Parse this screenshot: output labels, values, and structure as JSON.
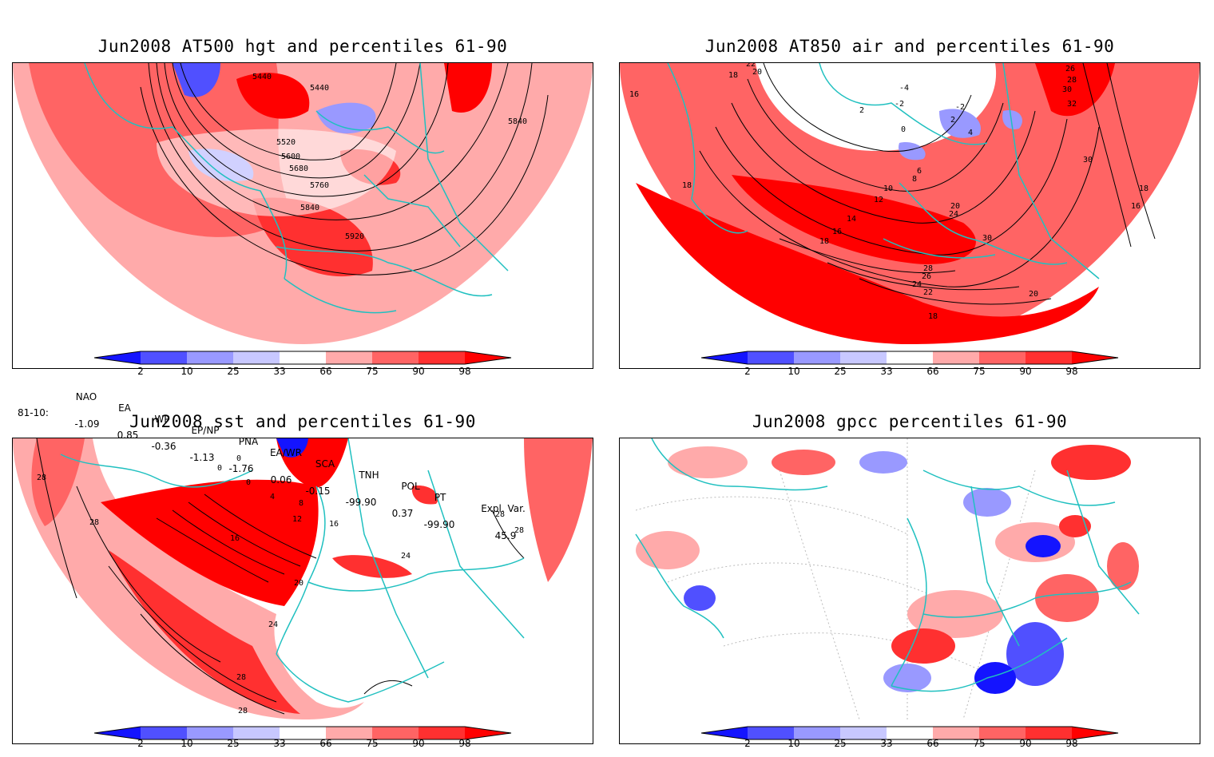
{
  "panels": [
    {
      "title": "Jun2008 AT500 hgt and percentiles 61-90",
      "contour_labels": [
        "5440",
        "5440",
        "5840",
        "5520",
        "5600",
        "5680",
        "5760",
        "5840",
        "5920"
      ]
    },
    {
      "title": "Jun2008 AT850 air and percentiles 61-90",
      "contour_labels": [
        "22",
        "20",
        "18",
        "16",
        "26",
        "28",
        "30",
        "32",
        "-4",
        "-2",
        "-2",
        "2",
        "2",
        "0",
        "4",
        "6",
        "8",
        "10",
        "12",
        "14",
        "16",
        "18",
        "18",
        "20",
        "24",
        "30",
        "30",
        "28",
        "26",
        "24",
        "22",
        "20",
        "18",
        "16",
        "18"
      ]
    },
    {
      "title": "Jun2008 sst and percentiles 61-90",
      "contour_labels": [
        "28",
        "28",
        "0",
        "0",
        "0",
        "4",
        "8",
        "12",
        "16",
        "16",
        "20",
        "24",
        "24",
        "28",
        "28",
        "28",
        "28"
      ]
    },
    {
      "title": "Jun2008 gpcc percentiles 61-90",
      "contour_labels": []
    }
  ],
  "colorbar": {
    "labels": [
      "2",
      "10",
      "25",
      "33",
      "66",
      "75",
      "90",
      "98"
    ],
    "colors": [
      "#1414ff",
      "#5050ff",
      "#9999ff",
      "#c8c8ff",
      "#ffffff",
      "#ffaaaa",
      "#ff6464",
      "#ff3030",
      "#ff0000"
    ]
  },
  "teleconnections": {
    "period": "81-10:",
    "headers": [
      "NAO",
      "EA",
      "WP",
      "EP/NP",
      "PNA",
      "EA/WR",
      "SCA",
      "TNH",
      "POL",
      "PT",
      "Expl. Var."
    ],
    "values": [
      "-1.09",
      "0.85",
      "-0.36",
      "-1.13",
      "-1.76",
      "0.06",
      "-0.15",
      "-99.90",
      "0.37",
      "-99.90",
      "45.9"
    ]
  },
  "colors": {
    "coast": "#20c0c0",
    "contour": "#000000",
    "warm_light": "#ffaaaa",
    "warm_mid": "#ff6464",
    "warm_strong": "#ff0000",
    "cold_light": "#9999ff",
    "cold_mid": "#5050ff",
    "cold_strong": "#1414ff"
  }
}
